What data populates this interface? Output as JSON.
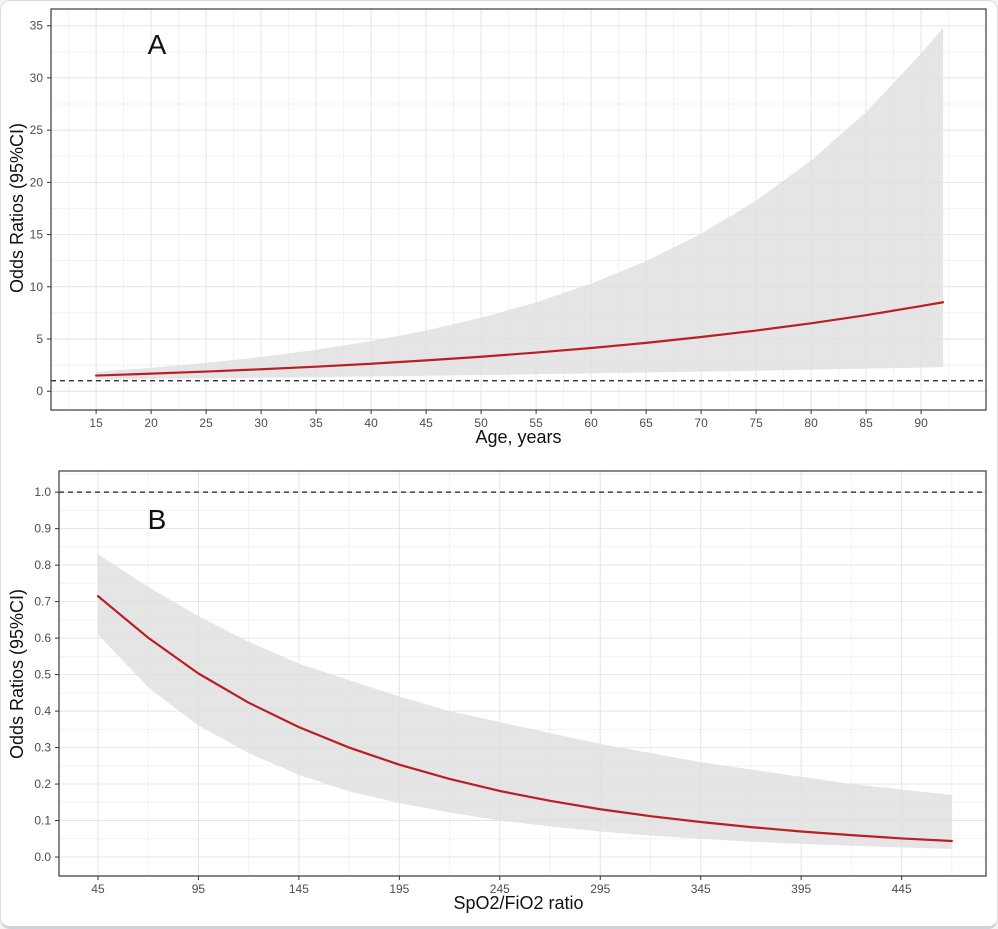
{
  "chart_data": [
    {
      "type": "line",
      "panel_label": "A",
      "xlabel": "Age, years",
      "ylabel": "Odds Ratios (95%CI)",
      "x": [
        15,
        20,
        25,
        30,
        35,
        40,
        45,
        50,
        55,
        60,
        65,
        70,
        75,
        80,
        85,
        90,
        92
      ],
      "series": [
        {
          "name": "odds-ratio",
          "values": [
            1.5,
            1.68,
            1.88,
            2.1,
            2.35,
            2.63,
            2.95,
            3.3,
            3.7,
            4.14,
            4.63,
            5.19,
            5.81,
            6.5,
            7.28,
            8.15,
            8.52
          ]
        },
        {
          "name": "ci-upper",
          "values": [
            1.85,
            2.24,
            2.71,
            3.28,
            3.97,
            4.8,
            5.81,
            7.03,
            8.51,
            10.3,
            12.46,
            15.08,
            18.25,
            22.08,
            26.72,
            32.33,
            34.8
          ]
        },
        {
          "name": "ci-lower",
          "values": [
            1.12,
            1.17,
            1.23,
            1.29,
            1.35,
            1.41,
            1.48,
            1.55,
            1.63,
            1.71,
            1.79,
            1.87,
            1.96,
            2.06,
            2.16,
            2.26,
            2.3
          ]
        }
      ],
      "reference_line_y": 1.0,
      "xlim": [
        10.9,
        95.9
      ],
      "ylim": [
        -1.8,
        36.6
      ],
      "xticks": [
        15,
        20,
        25,
        30,
        35,
        40,
        45,
        50,
        55,
        60,
        65,
        70,
        75,
        80,
        85,
        90
      ],
      "xtick_labels": [
        "15",
        "20",
        "25",
        "30",
        "35",
        "40",
        "45",
        "50",
        "55",
        "60",
        "65",
        "70",
        "75",
        "80",
        "85",
        "90"
      ],
      "yticks": [
        0,
        5,
        10,
        15,
        20,
        25,
        30,
        35
      ],
      "ytick_labels": [
        "0",
        "5",
        "10",
        "15",
        "20",
        "25",
        "30",
        "35"
      ],
      "grid": true,
      "legend": "none",
      "line_color": "#b82025",
      "band_color": "#dedede",
      "ref_line_style": "dashed"
    },
    {
      "type": "line",
      "panel_label": "B",
      "xlabel": "SpO2/FiO2 ratio",
      "ylabel": "Odds Ratios (95%CI)",
      "x": [
        45,
        70,
        95,
        120,
        145,
        170,
        195,
        220,
        245,
        270,
        295,
        320,
        345,
        370,
        395,
        420,
        445,
        470
      ],
      "series": [
        {
          "name": "odds-ratio",
          "values": [
            0.715,
            0.601,
            0.503,
            0.423,
            0.356,
            0.3,
            0.253,
            0.214,
            0.181,
            0.154,
            0.131,
            0.112,
            0.096,
            0.082,
            0.07,
            0.06,
            0.051,
            0.044
          ]
        },
        {
          "name": "ci-upper",
          "values": [
            0.83,
            0.74,
            0.66,
            0.59,
            0.53,
            0.485,
            0.44,
            0.4,
            0.37,
            0.34,
            0.31,
            0.285,
            0.26,
            0.24,
            0.22,
            0.2,
            0.185,
            0.17
          ]
        },
        {
          "name": "ci-lower",
          "values": [
            0.61,
            0.465,
            0.36,
            0.285,
            0.225,
            0.18,
            0.148,
            0.122,
            0.1,
            0.084,
            0.07,
            0.059,
            0.05,
            0.042,
            0.036,
            0.031,
            0.026,
            0.022
          ]
        }
      ],
      "reference_line_y": 1.0,
      "xlim": [
        25.6,
        487
      ],
      "ylim": [
        -0.052,
        1.058
      ],
      "xticks": [
        45,
        95,
        145,
        195,
        245,
        295,
        345,
        395,
        445
      ],
      "xtick_labels": [
        "45",
        "95",
        "145",
        "195",
        "245",
        "295",
        "345",
        "395",
        "445"
      ],
      "yticks": [
        0.0,
        0.1,
        0.2,
        0.3,
        0.4,
        0.5,
        0.6,
        0.7,
        0.8,
        0.9,
        1.0
      ],
      "ytick_labels": [
        "0.0",
        "0.1",
        "0.2",
        "0.3",
        "0.4",
        "0.5",
        "0.6",
        "0.7",
        "0.8",
        "0.9",
        "1.0"
      ],
      "grid": true,
      "legend": "none",
      "line_color": "#b82025",
      "band_color": "#dedede",
      "ref_line_style": "dashed"
    }
  ]
}
